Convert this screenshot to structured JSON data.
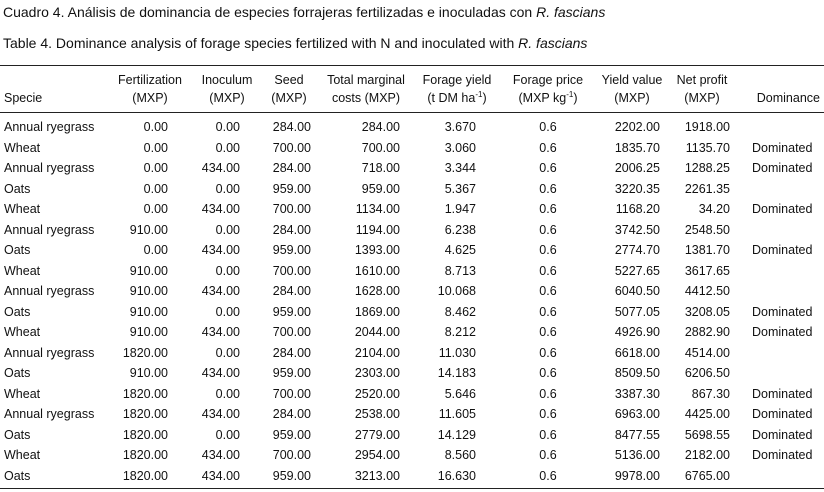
{
  "captions": [
    [
      "Cuadro 4. Análisis de dominancia de especies forrajeras fertilizadas e inoculadas con ",
      {
        "italic": "R. fascians"
      }
    ],
    [
      "Table 4. Dominance analysis of forage species fertilized with N and inoculated with ",
      {
        "italic": "R. fascians"
      }
    ]
  ],
  "table": {
    "headers": [
      [
        [
          "Specie"
        ]
      ],
      [
        [
          "Fertilization"
        ],
        [
          "(MXP)"
        ]
      ],
      [
        [
          "Inoculum"
        ],
        [
          "(MXP)"
        ]
      ],
      [
        [
          "Seed"
        ],
        [
          "(MXP)"
        ]
      ],
      [
        [
          "Total marginal"
        ],
        [
          "costs (MXP)"
        ]
      ],
      [
        [
          "Forage yield"
        ],
        [
          "(t DM ha",
          {
            "sup": "-1"
          },
          ")"
        ]
      ],
      [
        [
          "Forage price"
        ],
        [
          "(MXP kg",
          {
            "sup": "-1"
          },
          ")"
        ]
      ],
      [
        [
          "Yield value"
        ],
        [
          "(MXP)"
        ]
      ],
      [
        [
          "Net profit"
        ],
        [
          "(MXP)"
        ]
      ],
      [
        [
          "Dominance"
        ]
      ]
    ],
    "rows": [
      [
        "Annual ryegrass",
        "0.00",
        "0.00",
        "284.00",
        "284.00",
        "3.670",
        "0.6",
        "2202.00",
        "1918.00",
        null
      ],
      [
        "Wheat",
        "0.00",
        "0.00",
        "700.00",
        "700.00",
        "3.060",
        "0.6",
        "1835.70",
        "1135.70",
        "Dominated"
      ],
      [
        "Annual ryegrass",
        "0.00",
        "434.00",
        "284.00",
        "718.00",
        "3.344",
        "0.6",
        "2006.25",
        "1288.25",
        "Dominated"
      ],
      [
        "Oats",
        "0.00",
        "0.00",
        "959.00",
        "959.00",
        "5.367",
        "0.6",
        "3220.35",
        "2261.35",
        null
      ],
      [
        "Wheat",
        "0.00",
        "434.00",
        "700.00",
        "1134.00",
        "1.947",
        "0.6",
        "1168.20",
        "34.20",
        "Dominated"
      ],
      [
        "Annual ryegrass",
        "910.00",
        "0.00",
        "284.00",
        "1194.00",
        "6.238",
        "0.6",
        "3742.50",
        "2548.50",
        null
      ],
      [
        "Oats",
        "0.00",
        "434.00",
        "959.00",
        "1393.00",
        "4.625",
        "0.6",
        "2774.70",
        "1381.70",
        "Dominated"
      ],
      [
        "Wheat",
        "910.00",
        "0.00",
        "700.00",
        "1610.00",
        "8.713",
        "0.6",
        "5227.65",
        "3617.65",
        null
      ],
      [
        "Annual ryegrass",
        "910.00",
        "434.00",
        "284.00",
        "1628.00",
        "10.068",
        "0.6",
        "6040.50",
        "4412.50",
        null
      ],
      [
        "Oats",
        "910.00",
        "0.00",
        "959.00",
        "1869.00",
        "8.462",
        "0.6",
        "5077.05",
        "3208.05",
        "Dominated"
      ],
      [
        "Wheat",
        "910.00",
        "434.00",
        "700.00",
        "2044.00",
        "8.212",
        "0.6",
        "4926.90",
        "2882.90",
        "Dominated"
      ],
      [
        "Annual ryegrass",
        "1820.00",
        "0.00",
        "284.00",
        "2104.00",
        "11.030",
        "0.6",
        "6618.00",
        "4514.00",
        null
      ],
      [
        "Oats",
        "910.00",
        "434.00",
        "959.00",
        "2303.00",
        "14.183",
        "0.6",
        "8509.50",
        "6206.50",
        null
      ],
      [
        "Wheat",
        "1820.00",
        "0.00",
        "700.00",
        "2520.00",
        "5.646",
        "0.6",
        "3387.30",
        "867.30",
        "Dominated"
      ],
      [
        "Annual ryegrass",
        "1820.00",
        "434.00",
        "284.00",
        "2538.00",
        "11.605",
        "0.6",
        "6963.00",
        "4425.00",
        "Dominated"
      ],
      [
        "Oats",
        "1820.00",
        "0.00",
        "959.00",
        "2779.00",
        "14.129",
        "0.6",
        "8477.55",
        "5698.55",
        "Dominated"
      ],
      [
        "Wheat",
        "1820.00",
        "434.00",
        "700.00",
        "2954.00",
        "8.560",
        "0.6",
        "5136.00",
        "2182.00",
        "Dominated"
      ],
      [
        "Oats",
        "1820.00",
        "434.00",
        "959.00",
        "3213.00",
        "16.630",
        "0.6",
        "9978.00",
        "6765.00",
        null
      ]
    ]
  }
}
